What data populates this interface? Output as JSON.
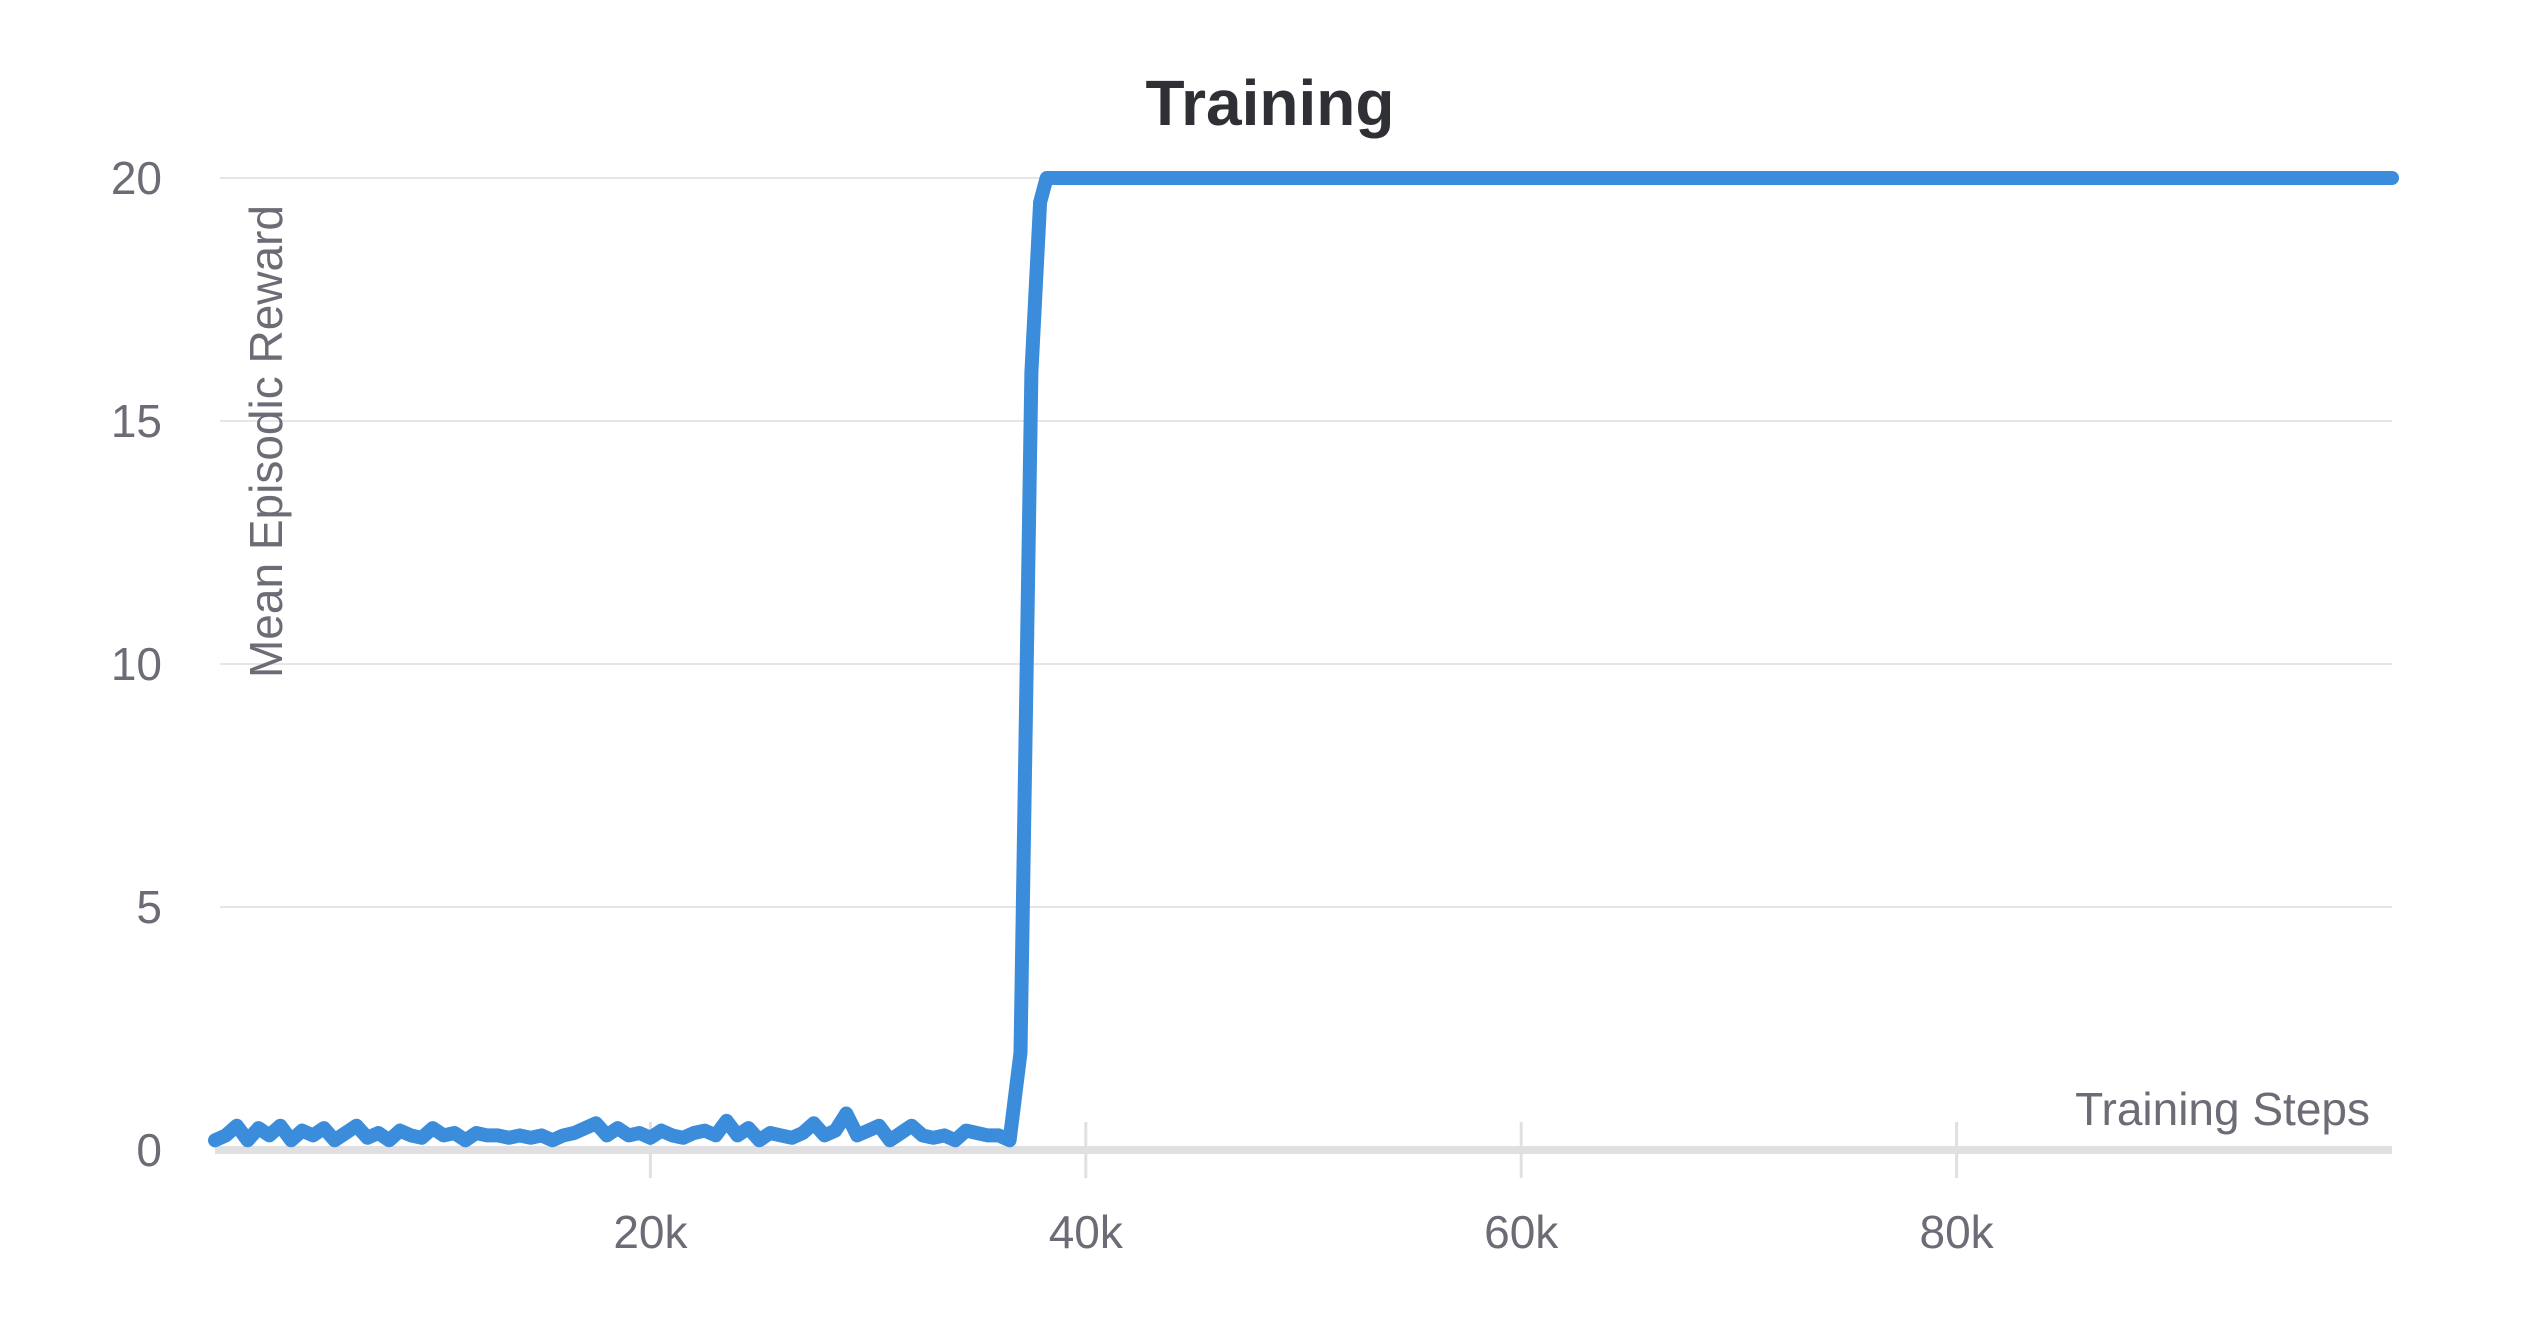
{
  "chart_data": {
    "type": "line",
    "title": "Training",
    "xlabel": "Training Steps",
    "ylabel": "Mean Episodic Reward",
    "xlim": [
      0,
      100000
    ],
    "ylim": [
      0,
      20
    ],
    "x_ticks": [
      {
        "value": 20000,
        "label": "20k"
      },
      {
        "value": 40000,
        "label": "40k"
      },
      {
        "value": 60000,
        "label": "60k"
      },
      {
        "value": 80000,
        "label": "80k"
      }
    ],
    "y_ticks": [
      {
        "value": 0,
        "label": "0"
      },
      {
        "value": 5,
        "label": "5"
      },
      {
        "value": 10,
        "label": "10"
      },
      {
        "value": 15,
        "label": "15"
      },
      {
        "value": 20,
        "label": "20"
      }
    ],
    "grid": true,
    "legend": "none",
    "series": [
      {
        "color": "#3b8ddb",
        "points": [
          [
            0,
            0.2
          ],
          [
            500,
            0.3
          ],
          [
            1000,
            0.5
          ],
          [
            1500,
            0.2
          ],
          [
            2000,
            0.45
          ],
          [
            2500,
            0.3
          ],
          [
            3000,
            0.5
          ],
          [
            3500,
            0.2
          ],
          [
            4000,
            0.4
          ],
          [
            4500,
            0.3
          ],
          [
            5000,
            0.45
          ],
          [
            5500,
            0.2
          ],
          [
            6000,
            0.35
          ],
          [
            6500,
            0.5
          ],
          [
            7000,
            0.25
          ],
          [
            7500,
            0.35
          ],
          [
            8000,
            0.2
          ],
          [
            8500,
            0.4
          ],
          [
            9000,
            0.3
          ],
          [
            9500,
            0.25
          ],
          [
            10000,
            0.45
          ],
          [
            10500,
            0.3
          ],
          [
            11000,
            0.35
          ],
          [
            11500,
            0.2
          ],
          [
            12000,
            0.35
          ],
          [
            12500,
            0.3
          ],
          [
            13000,
            0.3
          ],
          [
            13500,
            0.25
          ],
          [
            14000,
            0.3
          ],
          [
            14500,
            0.25
          ],
          [
            15000,
            0.3
          ],
          [
            15500,
            0.2
          ],
          [
            16000,
            0.3
          ],
          [
            16500,
            0.35
          ],
          [
            17000,
            0.45
          ],
          [
            17500,
            0.55
          ],
          [
            18000,
            0.3
          ],
          [
            18500,
            0.45
          ],
          [
            19000,
            0.3
          ],
          [
            19500,
            0.35
          ],
          [
            20000,
            0.25
          ],
          [
            20500,
            0.4
          ],
          [
            21000,
            0.3
          ],
          [
            21500,
            0.25
          ],
          [
            22000,
            0.35
          ],
          [
            22500,
            0.4
          ],
          [
            23000,
            0.3
          ],
          [
            23500,
            0.6
          ],
          [
            24000,
            0.3
          ],
          [
            24500,
            0.45
          ],
          [
            25000,
            0.2
          ],
          [
            25500,
            0.35
          ],
          [
            26000,
            0.3
          ],
          [
            26500,
            0.25
          ],
          [
            27000,
            0.35
          ],
          [
            27500,
            0.55
          ],
          [
            28000,
            0.3
          ],
          [
            28500,
            0.4
          ],
          [
            29000,
            0.75
          ],
          [
            29500,
            0.3
          ],
          [
            30000,
            0.4
          ],
          [
            30500,
            0.5
          ],
          [
            31000,
            0.2
          ],
          [
            31500,
            0.35
          ],
          [
            32000,
            0.5
          ],
          [
            32500,
            0.3
          ],
          [
            33000,
            0.25
          ],
          [
            33500,
            0.3
          ],
          [
            34000,
            0.2
          ],
          [
            34500,
            0.4
          ],
          [
            35000,
            0.35
          ],
          [
            35500,
            0.3
          ],
          [
            36000,
            0.3
          ],
          [
            36500,
            0.2
          ],
          [
            37000,
            2
          ],
          [
            37500,
            16
          ],
          [
            37900,
            19.5
          ],
          [
            38200,
            20
          ],
          [
            100000,
            20
          ]
        ]
      }
    ]
  }
}
